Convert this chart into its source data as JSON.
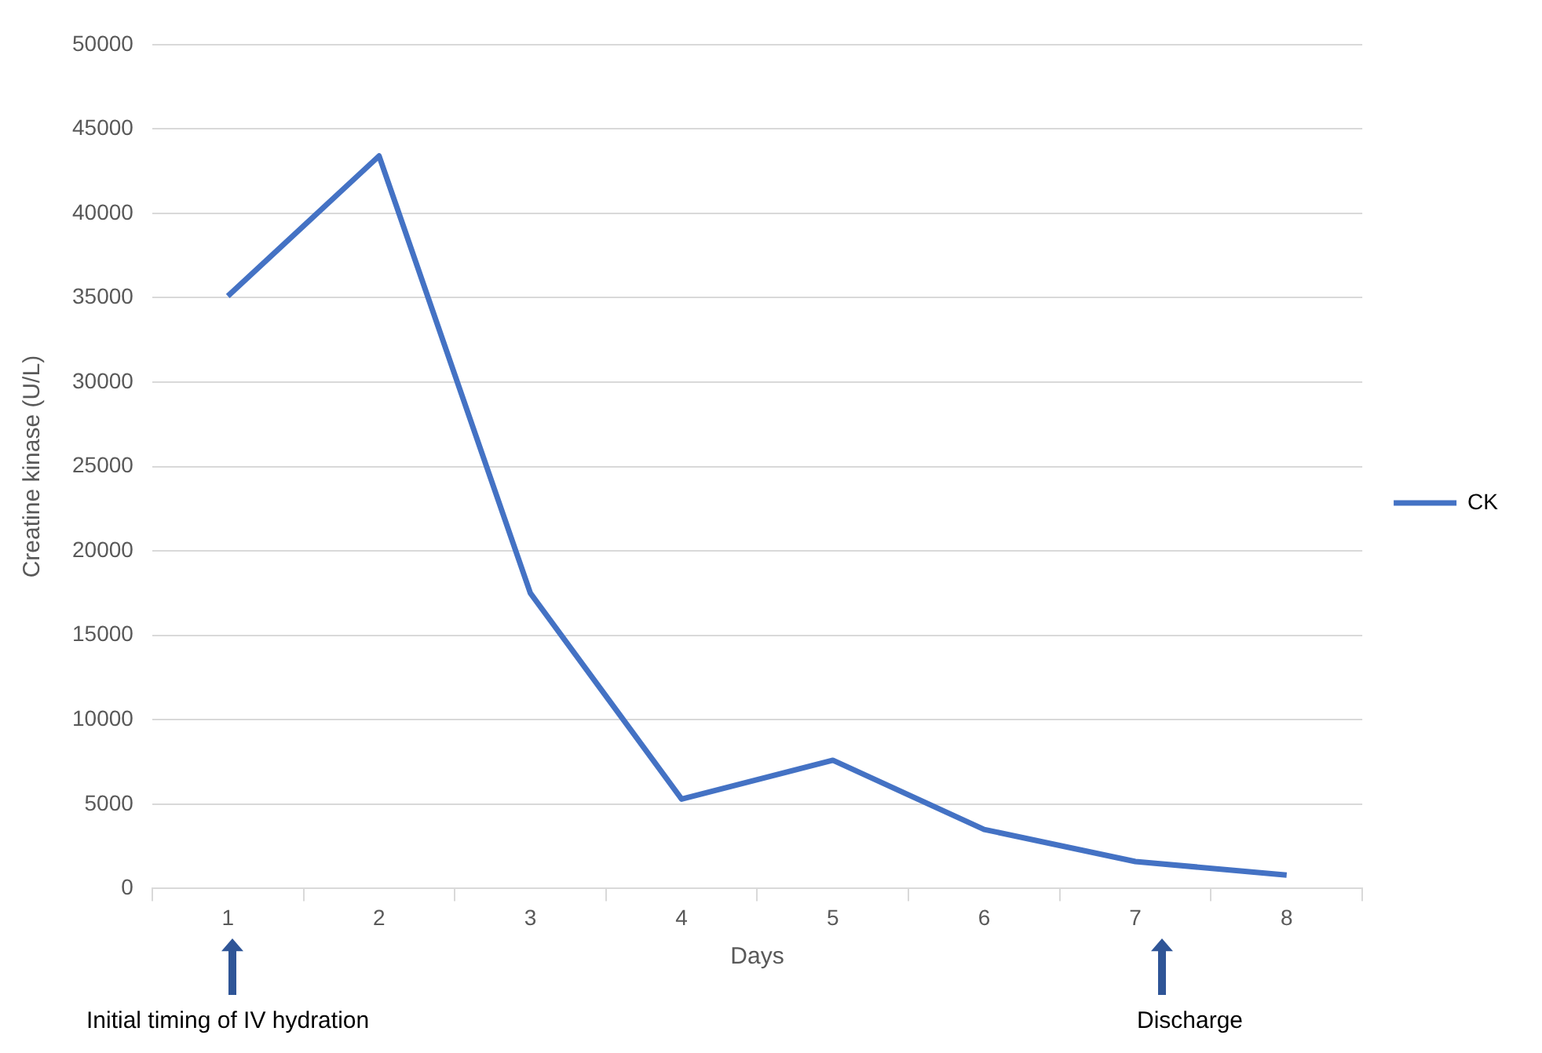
{
  "chart_data": {
    "type": "line",
    "xlabel": "Days",
    "ylabel": "Creatine kinase (U/L)",
    "categories": [
      "1",
      "2",
      "3",
      "4",
      "5",
      "6",
      "7",
      "8"
    ],
    "series": [
      {
        "name": "CK",
        "color": "#4472c4",
        "values": [
          35100,
          43400,
          17500,
          5300,
          7600,
          3500,
          1600,
          800
        ]
      }
    ],
    "ylim": [
      0,
      50000
    ],
    "yticks": [
      0,
      5000,
      10000,
      15000,
      20000,
      25000,
      30000,
      35000,
      40000,
      45000,
      50000
    ],
    "grid": "y",
    "legend": "right",
    "marker": "none",
    "line_style": "solid",
    "annotations": [
      "Initial timing of IV hydration",
      "Discharge"
    ]
  }
}
